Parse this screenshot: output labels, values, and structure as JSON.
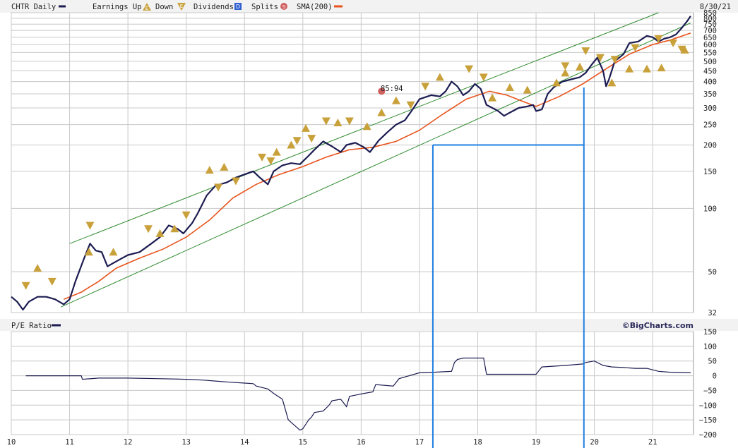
{
  "legend": {
    "ticker": "CHTR Daily",
    "earnings_up": "Earnings Up",
    "earnings_down": "Down",
    "dividends": "Dividends",
    "splits": "Splits",
    "sma": "SMA(200)",
    "date": "8/30/21",
    "earnings_glyph": "E",
    "dividend_glyph": "D",
    "split_glyph": "S"
  },
  "annotation": {
    "split_label": "85:94"
  },
  "pe_panel": {
    "title": "P/E Ratio",
    "brand": "©BigCharts.com"
  },
  "colors": {
    "price": "#1c1c52",
    "sma": "#e8531d",
    "channel": "#2e8b2e",
    "guide": "#1f7fe0",
    "earnings": "#c9a13b",
    "split": "#d06060",
    "dividend": "#2f5fd0",
    "grid": "#c8c8c8"
  },
  "chart_data": [
    {
      "type": "line",
      "scale": "log",
      "ylim": [
        32,
        850
      ],
      "xlim": [
        2010.0,
        2021.7
      ],
      "yticks": [
        "850",
        "800",
        "750",
        "700",
        "650",
        "600",
        "550",
        "500",
        "450",
        "400",
        "350",
        "300",
        "250",
        "200",
        "150",
        "100",
        "50",
        "32"
      ],
      "xticks": [
        "10",
        "11",
        "12",
        "13",
        "14",
        "15",
        "16",
        "17",
        "18",
        "19",
        "20",
        "21"
      ],
      "series": [
        {
          "name": "CHTR Daily",
          "x": [
            2010.0,
            2010.1,
            2010.2,
            2010.3,
            2010.45,
            2010.6,
            2010.75,
            2010.9,
            2011.0,
            2011.1,
            2011.25,
            2011.35,
            2011.45,
            2011.55,
            2011.65,
            2011.75,
            2011.9,
            2012.0,
            2012.2,
            2012.4,
            2012.55,
            2012.7,
            2012.85,
            2012.95,
            2013.1,
            2013.2,
            2013.35,
            2013.5,
            2013.7,
            2013.85,
            2014.0,
            2014.15,
            2014.25,
            2014.4,
            2014.5,
            2014.65,
            2014.8,
            2014.95,
            2015.1,
            2015.2,
            2015.35,
            2015.5,
            2015.65,
            2015.75,
            2015.9,
            2016.05,
            2016.15,
            2016.3,
            2016.45,
            2016.6,
            2016.75,
            2016.9,
            2017.0,
            2017.2,
            2017.35,
            2017.45,
            2017.55,
            2017.65,
            2017.75,
            2017.85,
            2017.95,
            2018.05,
            2018.15,
            2018.25,
            2018.35,
            2018.45,
            2018.55,
            2018.7,
            2018.85,
            2018.95,
            2019.0,
            2019.1,
            2019.2,
            2019.3,
            2019.45,
            2019.6,
            2019.75,
            2019.85,
            2019.95,
            2020.05,
            2020.15,
            2020.2,
            2020.25,
            2020.35,
            2020.5,
            2020.6,
            2020.75,
            2020.9,
            2021.0,
            2021.1,
            2021.2,
            2021.3,
            2021.4,
            2021.5,
            2021.6,
            2021.65
          ],
          "y": [
            38,
            36,
            33,
            36,
            38,
            38,
            37,
            35,
            37,
            45,
            58,
            68,
            63,
            62,
            53,
            55,
            58,
            60,
            62,
            68,
            73,
            83,
            80,
            76,
            85,
            95,
            115,
            128,
            133,
            140,
            145,
            150,
            141,
            130,
            150,
            160,
            164,
            162,
            178,
            190,
            208,
            197,
            185,
            200,
            205,
            195,
            185,
            210,
            230,
            250,
            262,
            300,
            330,
            345,
            340,
            360,
            400,
            380,
            345,
            360,
            390,
            370,
            310,
            300,
            290,
            275,
            285,
            300,
            305,
            310,
            290,
            295,
            350,
            375,
            400,
            410,
            420,
            440,
            480,
            520,
            450,
            380,
            410,
            500,
            540,
            610,
            620,
            660,
            650,
            620,
            640,
            650,
            670,
            720,
            780,
            820
          ]
        },
        {
          "name": "SMA(200)",
          "x": [
            2010.9,
            2011.2,
            2011.5,
            2011.8,
            2012.2,
            2012.6,
            2013.0,
            2013.4,
            2013.8,
            2014.2,
            2014.6,
            2015.0,
            2015.4,
            2015.8,
            2016.2,
            2016.6,
            2017.0,
            2017.4,
            2017.8,
            2018.2,
            2018.5,
            2018.8,
            2019.0,
            2019.4,
            2019.8,
            2020.2,
            2020.6,
            2021.0,
            2021.3,
            2021.65
          ],
          "y": [
            37,
            40,
            45,
            52,
            58,
            64,
            73,
            88,
            112,
            130,
            145,
            158,
            175,
            190,
            195,
            208,
            235,
            280,
            330,
            360,
            345,
            320,
            305,
            340,
            390,
            460,
            540,
            600,
            630,
            680
          ]
        }
      ],
      "trend_lines": [
        {
          "name": "upper-channel",
          "x": [
            2011.0,
            2021.1
          ],
          "y": [
            68,
            850
          ]
        },
        {
          "name": "lower-channel",
          "x": [
            2010.85,
            2021.65
          ],
          "y": [
            34,
            760
          ]
        }
      ],
      "guide_lines": {
        "level": 200,
        "x_from": 2017.23,
        "x_to": 2019.82
      },
      "earnings_up": [
        {
          "x": 2010.45,
          "y": 52
        },
        {
          "x": 2011.33,
          "y": 62
        },
        {
          "x": 2011.75,
          "y": 62
        },
        {
          "x": 2012.55,
          "y": 76
        },
        {
          "x": 2012.8,
          "y": 80
        },
        {
          "x": 2013.4,
          "y": 152
        },
        {
          "x": 2013.65,
          "y": 157
        },
        {
          "x": 2014.55,
          "y": 185
        },
        {
          "x": 2014.8,
          "y": 200
        },
        {
          "x": 2015.05,
          "y": 240
        },
        {
          "x": 2015.6,
          "y": 255
        },
        {
          "x": 2016.1,
          "y": 245
        },
        {
          "x": 2016.35,
          "y": 285
        },
        {
          "x": 2016.6,
          "y": 325
        },
        {
          "x": 2017.35,
          "y": 420
        },
        {
          "x": 2018.25,
          "y": 335
        },
        {
          "x": 2018.55,
          "y": 375
        },
        {
          "x": 2018.85,
          "y": 365
        },
        {
          "x": 2019.35,
          "y": 395
        },
        {
          "x": 2019.5,
          "y": 440
        },
        {
          "x": 2019.75,
          "y": 470
        },
        {
          "x": 2020.3,
          "y": 395
        },
        {
          "x": 2020.6,
          "y": 460
        },
        {
          "x": 2020.9,
          "y": 460
        },
        {
          "x": 2021.15,
          "y": 465
        },
        {
          "x": 2021.55,
          "y": 565
        }
      ],
      "earnings_down": [
        {
          "x": 2010.25,
          "y": 43
        },
        {
          "x": 2010.7,
          "y": 45
        },
        {
          "x": 2011.35,
          "y": 83
        },
        {
          "x": 2012.35,
          "y": 80
        },
        {
          "x": 2013.0,
          "y": 93
        },
        {
          "x": 2013.55,
          "y": 126
        },
        {
          "x": 2013.85,
          "y": 135
        },
        {
          "x": 2014.3,
          "y": 175
        },
        {
          "x": 2014.45,
          "y": 168
        },
        {
          "x": 2014.9,
          "y": 210
        },
        {
          "x": 2015.15,
          "y": 215
        },
        {
          "x": 2015.4,
          "y": 260
        },
        {
          "x": 2015.8,
          "y": 260
        },
        {
          "x": 2016.85,
          "y": 310
        },
        {
          "x": 2017.1,
          "y": 380
        },
        {
          "x": 2017.85,
          "y": 460
        },
        {
          "x": 2018.1,
          "y": 420
        },
        {
          "x": 2019.5,
          "y": 475
        },
        {
          "x": 2019.85,
          "y": 560
        },
        {
          "x": 2020.1,
          "y": 520
        },
        {
          "x": 2020.35,
          "y": 510
        },
        {
          "x": 2020.7,
          "y": 580
        },
        {
          "x": 2021.1,
          "y": 640
        },
        {
          "x": 2021.35,
          "y": 610
        },
        {
          "x": 2021.5,
          "y": 570
        }
      ],
      "splits": [
        {
          "x": 2016.35,
          "y": 360
        }
      ]
    },
    {
      "type": "line",
      "title": "P/E Ratio",
      "ylim": [
        -200,
        150
      ],
      "yticks": [
        "150",
        "100",
        "50",
        "0",
        "−50",
        "−100",
        "−150",
        "−200"
      ],
      "series": [
        {
          "name": "P/E Ratio",
          "x": [
            2010.25,
            2011.2,
            2011.22,
            2011.5,
            2012.0,
            2012.5,
            2013.0,
            2013.3,
            2013.5,
            2013.75,
            2014.0,
            2014.15,
            2014.2,
            2014.4,
            2014.5,
            2014.65,
            2014.75,
            2014.95,
            2015.0,
            2015.1,
            2015.15,
            2015.2,
            2015.35,
            2015.45,
            2015.5,
            2015.65,
            2015.75,
            2015.8,
            2016.05,
            2016.2,
            2016.25,
            2016.55,
            2016.65,
            2017.0,
            2017.25,
            2017.55,
            2017.6,
            2017.65,
            2017.75,
            2018.1,
            2018.15,
            2019.0,
            2019.1,
            2019.5,
            2019.8,
            2019.85,
            2020.0,
            2020.15,
            2020.3,
            2020.5,
            2020.7,
            2020.9,
            2021.0,
            2021.1,
            2021.3,
            2021.65
          ],
          "y": [
            0,
            0,
            -12,
            -8,
            -8,
            -10,
            -12,
            -15,
            -18,
            -22,
            -25,
            -27,
            -35,
            -45,
            -60,
            -80,
            -150,
            -185,
            -180,
            -150,
            -140,
            -125,
            -120,
            -100,
            -85,
            -80,
            -105,
            -70,
            -60,
            -55,
            -30,
            -35,
            -10,
            10,
            12,
            15,
            45,
            55,
            60,
            60,
            5,
            5,
            30,
            35,
            40,
            45,
            50,
            35,
            30,
            28,
            25,
            25,
            20,
            15,
            12,
            10
          ]
        }
      ]
    }
  ]
}
